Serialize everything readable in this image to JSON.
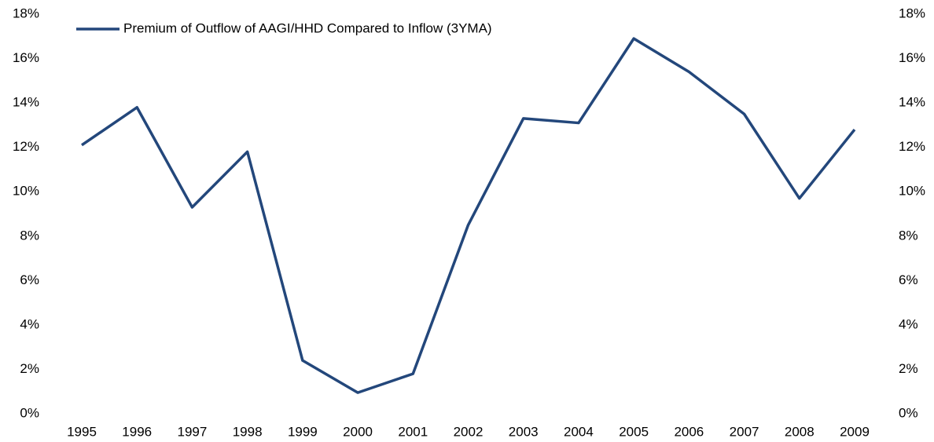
{
  "chart_data": {
    "type": "line",
    "categories": [
      "1995",
      "1996",
      "1997",
      "1998",
      "1999",
      "2000",
      "2001",
      "2002",
      "2003",
      "2004",
      "2005",
      "2006",
      "2007",
      "2008",
      "2009"
    ],
    "series": [
      {
        "name": "Premium of Outflow of AAGI/HHD Compared to Inflow (3YMA)",
        "color": "#23477b",
        "values": [
          12.1,
          13.8,
          9.3,
          11.8,
          2.4,
          0.95,
          1.8,
          8.5,
          13.3,
          13.1,
          16.9,
          15.4,
          13.5,
          9.7,
          12.8
        ]
      }
    ],
    "ylim": [
      0,
      18
    ],
    "yticks": [
      {
        "value": 0,
        "label": "0%"
      },
      {
        "value": 2,
        "label": "2%"
      },
      {
        "value": 4,
        "label": "4%"
      },
      {
        "value": 6,
        "label": "6%"
      },
      {
        "value": 8,
        "label": "8%"
      },
      {
        "value": 10,
        "label": "10%"
      },
      {
        "value": 12,
        "label": "12%"
      },
      {
        "value": 14,
        "label": "14%"
      },
      {
        "value": 16,
        "label": "16%"
      },
      {
        "value": 18,
        "label": "18%"
      }
    ],
    "y2lim": [
      0,
      18
    ],
    "y2ticks": [
      {
        "value": 0,
        "label": "0%"
      },
      {
        "value": 2,
        "label": "2%"
      },
      {
        "value": 4,
        "label": "4%"
      },
      {
        "value": 6,
        "label": "6%"
      },
      {
        "value": 8,
        "label": "8%"
      },
      {
        "value": 10,
        "label": "10%"
      },
      {
        "value": 12,
        "label": "12%"
      },
      {
        "value": 14,
        "label": "14%"
      },
      {
        "value": 16,
        "label": "16%"
      },
      {
        "value": 18,
        "label": "18%"
      }
    ],
    "grid": false,
    "legend": "upper left"
  }
}
